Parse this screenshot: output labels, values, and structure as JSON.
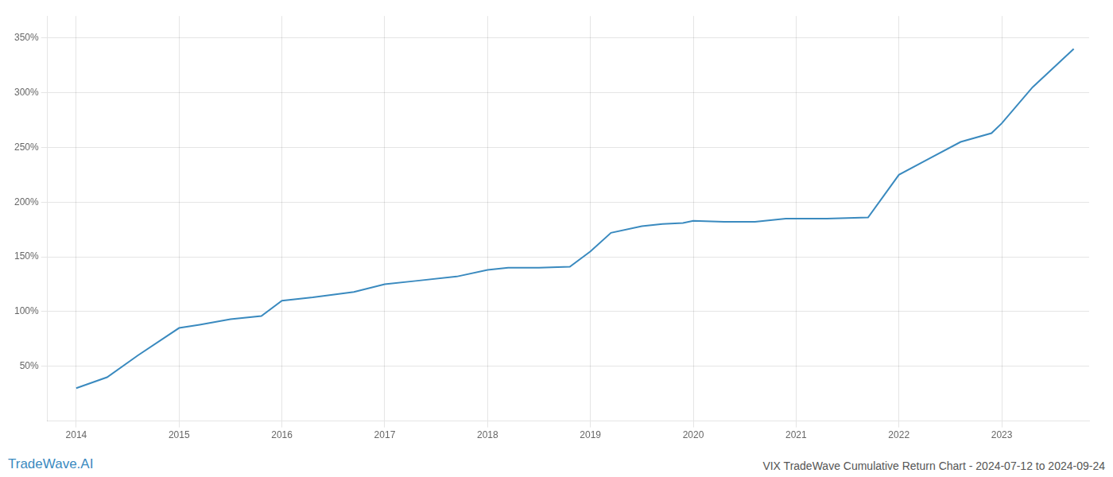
{
  "chart_data": {
    "type": "line",
    "title": "VIX TradeWave Cumulative Return Chart - 2024-07-12 to 2024-09-24",
    "annotations": [
      {
        "text": "TradeWave.AI",
        "color": "#3a8abf"
      }
    ],
    "x": [
      2014.0,
      2014.3,
      2014.6,
      2015.0,
      2015.2,
      2015.5,
      2015.8,
      2016.0,
      2016.3,
      2016.7,
      2017.0,
      2017.3,
      2017.7,
      2018.0,
      2018.2,
      2018.5,
      2018.8,
      2019.0,
      2019.2,
      2019.5,
      2019.7,
      2019.9,
      2020.0,
      2020.3,
      2020.6,
      2020.9,
      2021.0,
      2021.3,
      2021.7,
      2022.0,
      2022.3,
      2022.6,
      2022.9,
      2023.0,
      2023.3,
      2023.7
    ],
    "values": [
      30,
      40,
      60,
      85,
      88,
      93,
      96,
      110,
      113,
      118,
      125,
      128,
      132,
      138,
      140,
      140,
      141,
      155,
      172,
      178,
      180,
      181,
      183,
      182,
      182,
      185,
      185,
      185,
      186,
      225,
      240,
      255,
      263,
      272,
      305,
      340
    ],
    "color": "#3a8abf",
    "xlim": [
      2013.72,
      2023.85
    ],
    "xticks": [
      2014,
      2015,
      2016,
      2017,
      2018,
      2019,
      2020,
      2021,
      2022,
      2023
    ],
    "ylim": [
      0,
      370
    ],
    "yticks": [
      {
        "value": 50,
        "label": "50%"
      },
      {
        "value": 100,
        "label": "100%"
      },
      {
        "value": 150,
        "label": "150%"
      },
      {
        "value": 200,
        "label": "200%"
      },
      {
        "value": 250,
        "label": "250%"
      },
      {
        "value": 300,
        "label": "300%"
      },
      {
        "value": 350,
        "label": "350%"
      }
    ],
    "grid": true
  }
}
